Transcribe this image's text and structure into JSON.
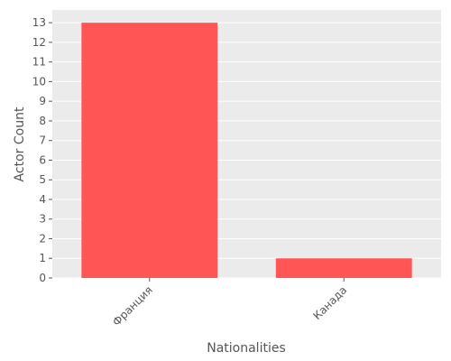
{
  "chart_data": {
    "type": "bar",
    "title": "",
    "xlabel": "Nationalities",
    "ylabel": "Actor Count",
    "categories": [
      "Франция",
      "Канада"
    ],
    "values": [
      13,
      1
    ],
    "ylim": [
      0,
      13.65
    ],
    "yticks": [
      0,
      1,
      2,
      3,
      4,
      5,
      6,
      7,
      8,
      9,
      10,
      11,
      12,
      13
    ],
    "grid": true,
    "bar_color": "#ff5555",
    "plot_background": "#ebebeb",
    "grid_color": "#ffffff"
  }
}
